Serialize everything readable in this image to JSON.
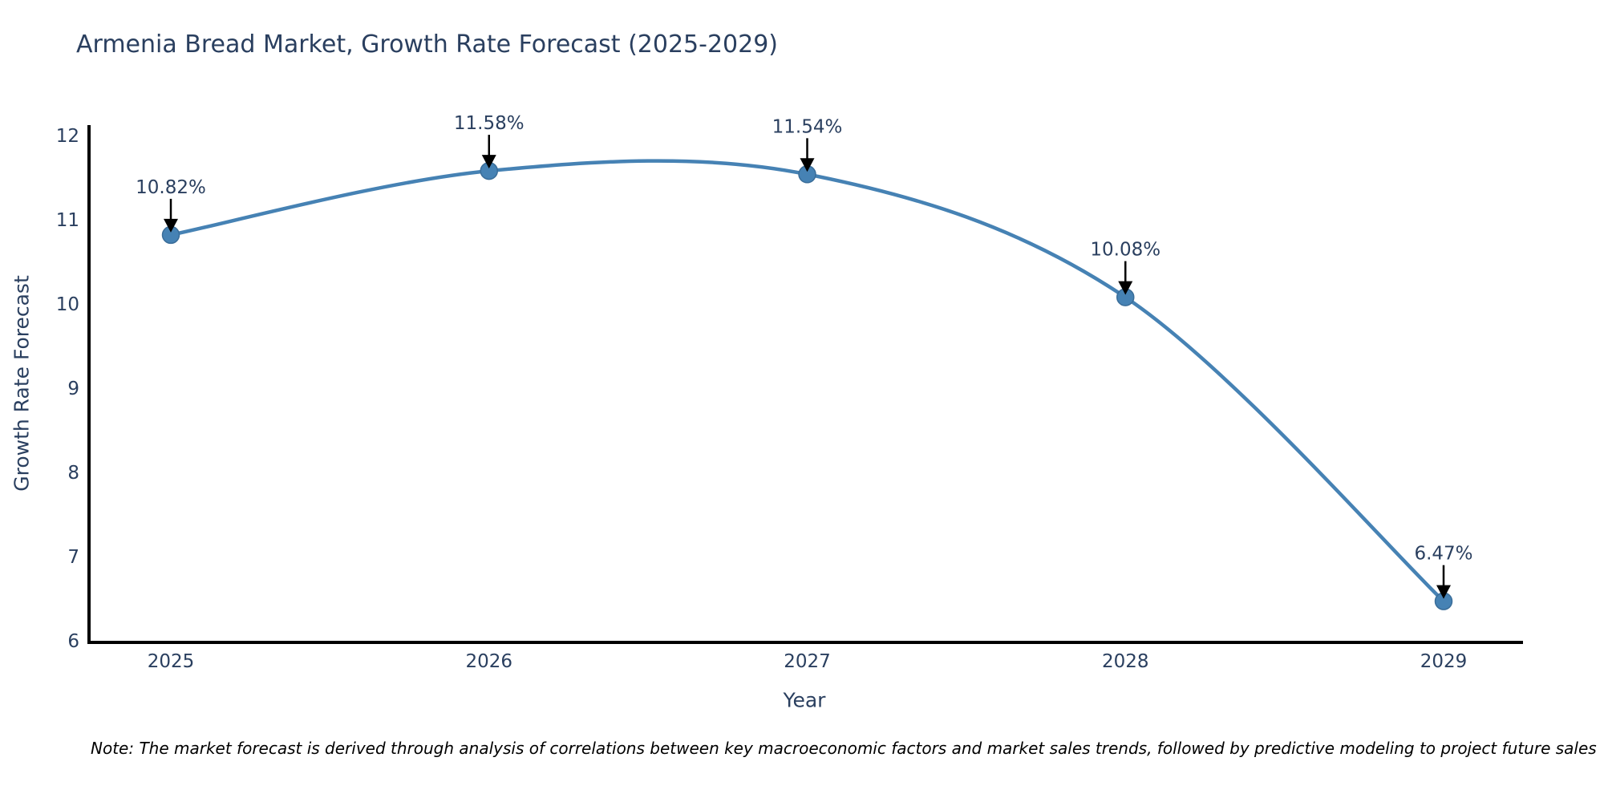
{
  "chart_data": {
    "type": "line",
    "title": "Armenia Bread Market, Growth Rate Forecast (2025-2029)",
    "xlabel": "Year",
    "ylabel": "Growth Rate Forecast",
    "x": [
      2025,
      2026,
      2027,
      2028,
      2029
    ],
    "series": [
      {
        "name": "Growth Rate Forecast",
        "values": [
          10.82,
          11.58,
          11.54,
          10.08,
          6.47
        ]
      }
    ],
    "point_labels": [
      "10.82%",
      "11.58%",
      "11.54%",
      "10.08%",
      "6.47%"
    ],
    "xtick_labels": [
      "2025",
      "2026",
      "2027",
      "2028",
      "2029"
    ],
    "yticks": [
      6,
      7,
      8,
      9,
      10,
      11,
      12
    ],
    "ylim": [
      6,
      12
    ],
    "grid": false,
    "legend": "none",
    "line_shape": "spline",
    "annotation_style": "label-above-with-down-arrow",
    "colors": {
      "line": "#4682b4",
      "marker": "#4682b4",
      "marker_edge": "#3a6d99",
      "axis": "#000000",
      "text": "#2a3f5f",
      "arrow": "#000000",
      "note": "#000000",
      "background": "#ffffff"
    },
    "note": "Note: The market forecast is derived through analysis of correlations between key macroeconomic factors and market sales trends, followed by predictive modeling to project future sales"
  }
}
